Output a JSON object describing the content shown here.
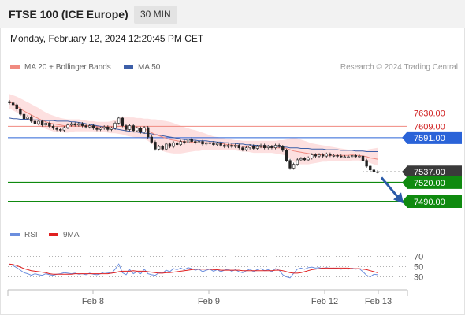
{
  "header": {
    "title": "FTSE 100 (ICE Europe)",
    "interval": "30 MIN"
  },
  "timestamp": "Monday, February 12, 2024 12:20:45 PM CET",
  "legend": {
    "ma20": "MA 20 + Bollinger Bands",
    "ma50": "MA 50",
    "credit": "Research © 2024 Trading Central",
    "rsi": "RSI",
    "ma9": "9MA"
  },
  "colors": {
    "ma20": "#f08a80",
    "bands": "#fde0e0",
    "ma50": "#3d5fa8",
    "resistance": "#f08a80",
    "pivot": "#2a63d8",
    "support": "#0f8a0f",
    "candle_up": "#ffffff",
    "candle_down": "#222222",
    "rsi": "#6b8ede",
    "rsi_ma": "#e02020",
    "arrow": "#2a5aa8"
  },
  "chart_data": [
    {
      "type": "candlestick",
      "title": "FTSE 100 (ICE Europe)",
      "interval": "30 MIN",
      "x_ticks": [
        "Feb 8",
        "Feb 9",
        "Feb 12",
        "Feb 13"
      ],
      "ylim": [
        7475,
        7658
      ],
      "levels": [
        {
          "value": 7630.0,
          "label": "7630.00",
          "kind": "resistance"
        },
        {
          "value": 7609.0,
          "label": "7609.00",
          "kind": "resistance"
        },
        {
          "value": 7591.0,
          "label": "7591.00",
          "kind": "pivot"
        },
        {
          "value": 7537.0,
          "label": "7537.00",
          "kind": "last"
        },
        {
          "value": 7520.0,
          "label": "7520.00",
          "kind": "support"
        },
        {
          "value": 7490.0,
          "label": "7490.00",
          "kind": "support"
        }
      ],
      "forecast_arrow": {
        "from": 7528,
        "to": 7492
      },
      "close": [
        7646,
        7643,
        7636,
        7628,
        7621,
        7624,
        7617,
        7613,
        7617,
        7611,
        7614,
        7609,
        7606,
        7604,
        7603,
        7607,
        7611,
        7613,
        7611,
        7613,
        7610,
        7608,
        7610,
        7606,
        7604,
        7606,
        7608,
        7604,
        7606,
        7614,
        7622,
        7610,
        7604,
        7610,
        7602,
        7606,
        7600,
        7607,
        7592,
        7584,
        7573,
        7577,
        7573,
        7581,
        7577,
        7583,
        7580,
        7585,
        7583,
        7589,
        7585,
        7583,
        7585,
        7581,
        7583,
        7583,
        7580,
        7582,
        7579,
        7577,
        7579,
        7577,
        7579,
        7575,
        7572,
        7575,
        7578,
        7574,
        7577,
        7579,
        7575,
        7577,
        7575,
        7579,
        7577,
        7571,
        7555,
        7543,
        7549,
        7556,
        7558,
        7556,
        7559,
        7564,
        7562,
        7564,
        7562,
        7565,
        7563,
        7563,
        7562,
        7561,
        7561,
        7561,
        7563,
        7561,
        7562,
        7555,
        7546,
        7540,
        7537,
        7537
      ],
      "ma20": [
        7648,
        7645,
        7641,
        7637,
        7633,
        7630,
        7627,
        7624,
        7621,
        7618,
        7616,
        7614,
        7613,
        7612,
        7611,
        7610,
        7610,
        7610,
        7611,
        7611,
        7611,
        7610,
        7610,
        7609,
        7608,
        7608,
        7607,
        7607,
        7607,
        7608,
        7609,
        7609,
        7608,
        7608,
        7607,
        7607,
        7606,
        7605,
        7602,
        7599,
        7596,
        7594,
        7592,
        7590,
        7588,
        7587,
        7586,
        7585,
        7585,
        7584,
        7584,
        7583,
        7583,
        7583,
        7583,
        7583,
        7583,
        7582,
        7582,
        7581,
        7580,
        7580,
        7579,
        7578,
        7577,
        7577,
        7577,
        7576,
        7576,
        7576,
        7576,
        7576,
        7576,
        7575,
        7575,
        7575,
        7574,
        7572,
        7570,
        7569,
        7568,
        7567,
        7566,
        7565,
        7564,
        7564,
        7564,
        7563,
        7563,
        7563,
        7563,
        7563,
        7563,
        7563,
        7564,
        7563,
        7563,
        7562,
        7561,
        7559,
        7558,
        7557
      ],
      "bb_upper": [
        7660,
        7658,
        7656,
        7653,
        7650,
        7647,
        7644,
        7641,
        7638,
        7634,
        7631,
        7628,
        7626,
        7624,
        7622,
        7621,
        7620,
        7620,
        7620,
        7620,
        7619,
        7618,
        7617,
        7617,
        7616,
        7616,
        7616,
        7616,
        7617,
        7619,
        7622,
        7624,
        7624,
        7623,
        7623,
        7622,
        7622,
        7621,
        7621,
        7620,
        7620,
        7619,
        7618,
        7617,
        7616,
        7614,
        7612,
        7610,
        7608,
        7606,
        7604,
        7603,
        7601,
        7599,
        7597,
        7595,
        7593,
        7592,
        7591,
        7590,
        7589,
        7588,
        7587,
        7587,
        7586,
        7586,
        7586,
        7586,
        7586,
        7586,
        7586,
        7586,
        7586,
        7586,
        7587,
        7587,
        7588,
        7590,
        7591,
        7590,
        7588,
        7586,
        7584,
        7582,
        7581,
        7580,
        7579,
        7578,
        7577,
        7576,
        7575,
        7574,
        7573,
        7572,
        7572,
        7571,
        7571,
        7571,
        7572,
        7573,
        7574,
        7575
      ],
      "bb_lower": [
        7637,
        7634,
        7631,
        7627,
        7623,
        7619,
        7616,
        7613,
        7610,
        7607,
        7605,
        7603,
        7601,
        7600,
        7600,
        7599,
        7599,
        7600,
        7601,
        7601,
        7601,
        7601,
        7601,
        7601,
        7600,
        7600,
        7600,
        7599,
        7598,
        7598,
        7597,
        7596,
        7594,
        7593,
        7592,
        7591,
        7590,
        7589,
        7586,
        7582,
        7577,
        7573,
        7570,
        7568,
        7567,
        7566,
        7566,
        7566,
        7567,
        7568,
        7569,
        7570,
        7570,
        7571,
        7571,
        7572,
        7572,
        7572,
        7572,
        7572,
        7571,
        7571,
        7571,
        7570,
        7569,
        7569,
        7568,
        7567,
        7567,
        7567,
        7567,
        7567,
        7567,
        7566,
        7565,
        7564,
        7562,
        7558,
        7553,
        7550,
        7549,
        7549,
        7549,
        7550,
        7551,
        7552,
        7553,
        7553,
        7554,
        7554,
        7554,
        7554,
        7554,
        7554,
        7555,
        7555,
        7555,
        7554,
        7553,
        7551,
        7549,
        7547
      ],
      "ma50": [
        7622,
        7621,
        7621,
        7620,
        7620,
        7620,
        7619,
        7619,
        7619,
        7618,
        7618,
        7618,
        7618,
        7617,
        7617,
        7617,
        7617,
        7616,
        7616,
        7615,
        7614,
        7613,
        7612,
        7611,
        7610,
        7609,
        7608,
        7607,
        7606,
        7605,
        7604,
        7603,
        7602,
        7601,
        7600,
        7600,
        7599,
        7598,
        7598,
        7597,
        7596,
        7595,
        7594,
        7593,
        7592,
        7591,
        7590,
        7589,
        7588,
        7588,
        7587,
        7587,
        7586,
        7586,
        7586,
        7585,
        7585,
        7584,
        7584,
        7583,
        7583,
        7582,
        7582,
        7581,
        7581,
        7580,
        7580,
        7579,
        7579,
        7578,
        7578,
        7578,
        7577,
        7577,
        7577,
        7576,
        7576,
        7575,
        7575,
        7575,
        7574,
        7574,
        7574,
        7573,
        7573,
        7573,
        7573,
        7572,
        7572,
        7572,
        7572,
        7571,
        7571,
        7571,
        7571,
        7570,
        7570,
        7570,
        7569,
        7569,
        7569,
        7569
      ]
    },
    {
      "type": "line",
      "series": [
        {
          "name": "RSI",
          "values": [
            55,
            52,
            48,
            43,
            38,
            36,
            33,
            36,
            34,
            33,
            36,
            34,
            33,
            35,
            36,
            38,
            37,
            36,
            37,
            35,
            36,
            34,
            37,
            35,
            34,
            36,
            39,
            38,
            37,
            45,
            55,
            38,
            34,
            44,
            36,
            40,
            36,
            45,
            36,
            34,
            33,
            38,
            37,
            43,
            40,
            46,
            44,
            47,
            44,
            48,
            46,
            43,
            45,
            40,
            43,
            45,
            41,
            44,
            40,
            43,
            45,
            41,
            44,
            40,
            38,
            42,
            45,
            40,
            44,
            46,
            42,
            44,
            40,
            46,
            43,
            34,
            30,
            28,
            37,
            45,
            47,
            45,
            48,
            49,
            47,
            48,
            46,
            48,
            46,
            47,
            46,
            45,
            46,
            45,
            47,
            45,
            46,
            40,
            33,
            30,
            35,
            34
          ]
        },
        {
          "name": "9MA",
          "values": [
            55,
            54,
            52,
            49,
            46,
            44,
            42,
            41,
            40,
            39,
            38,
            36,
            35,
            35,
            35,
            35,
            35,
            35,
            36,
            36,
            36,
            36,
            36,
            36,
            36,
            36,
            36,
            36,
            37,
            38,
            40,
            41,
            41,
            41,
            42,
            41,
            41,
            41,
            40,
            39,
            38,
            37,
            37,
            38,
            38,
            39,
            40,
            41,
            42,
            43,
            44,
            45,
            45,
            45,
            45,
            45,
            44,
            44,
            43,
            43,
            43,
            43,
            43,
            43,
            42,
            42,
            42,
            42,
            42,
            42,
            42,
            42,
            42,
            43,
            43,
            42,
            40,
            38,
            37,
            37,
            38,
            40,
            42,
            44,
            45,
            46,
            47,
            47,
            47,
            47,
            47,
            47,
            47,
            47,
            46,
            46,
            46,
            45,
            44,
            42,
            40,
            38
          ]
        }
      ],
      "ylim": [
        20,
        80
      ],
      "y_ticks": [
        70,
        50,
        30
      ]
    }
  ]
}
